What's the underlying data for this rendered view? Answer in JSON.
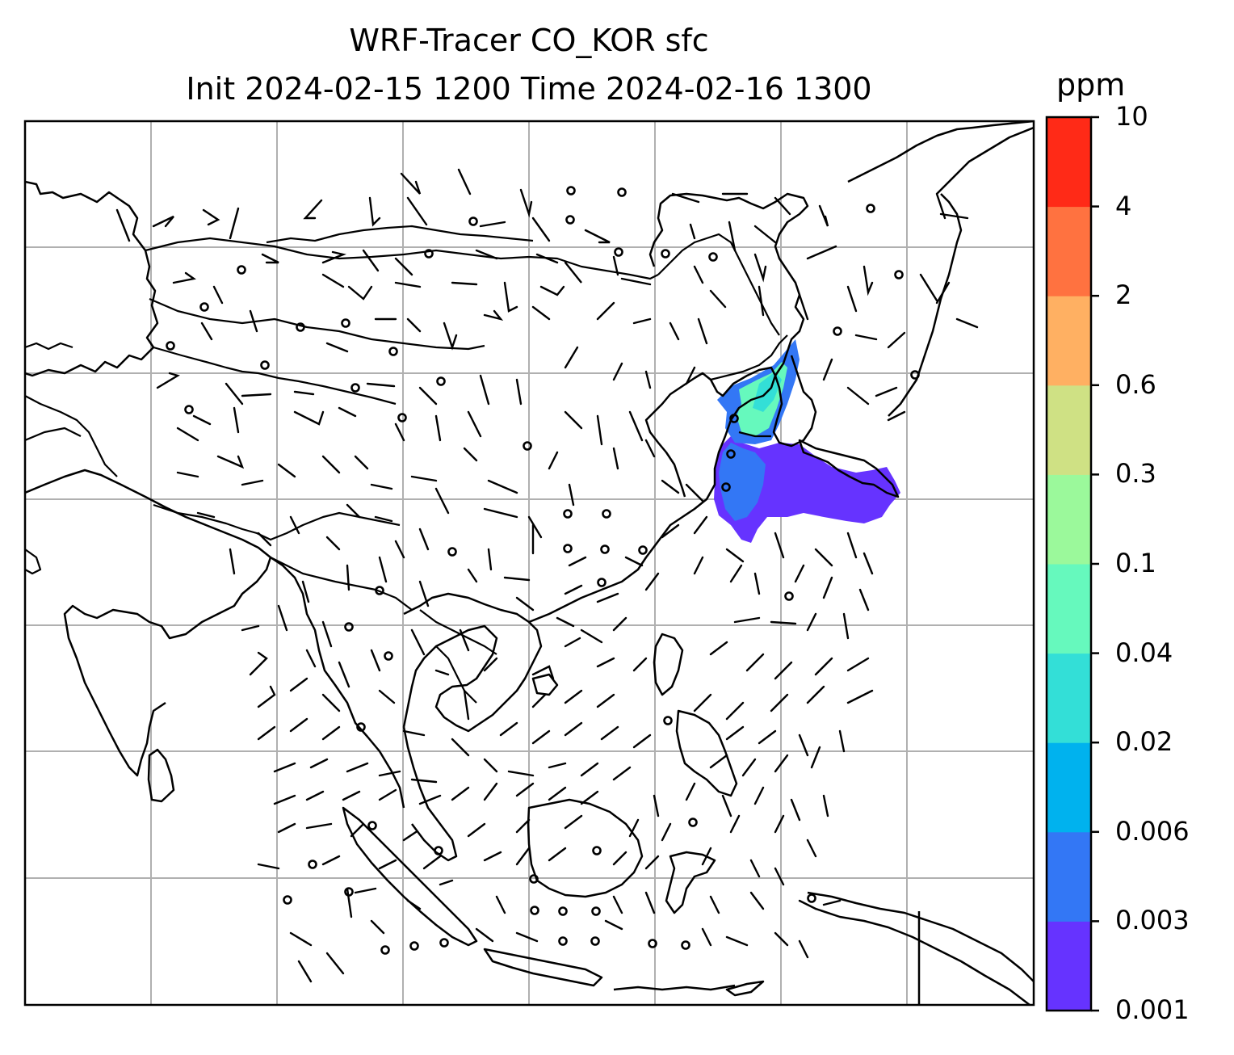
{
  "title_line1": "WRF-Tracer CO_KOR sfc",
  "title_line2": "Init 2024-02-15 1200 Time 2024-02-16 1300",
  "colorbar": {
    "unit": "ppm",
    "levels": [
      "0.001",
      "0.003",
      "0.006",
      "0.02",
      "0.04",
      "0.1",
      "0.3",
      "0.6",
      "2",
      "4",
      "10"
    ],
    "colors": [
      "#6633ff",
      "#3377f5",
      "#00b2ee",
      "#33dfd7",
      "#66f9bd",
      "#9bf99b",
      "#cfe184",
      "#ffb062",
      "#ff7240",
      "#ff2a17"
    ]
  },
  "map": {
    "grid": "on",
    "plume_region": "Korea / Yellow Sea / southern Japan",
    "plume_low_color": "#6633ff",
    "plume_mid_color": "#3377f5",
    "plume_high_color": "#66f9bd"
  }
}
